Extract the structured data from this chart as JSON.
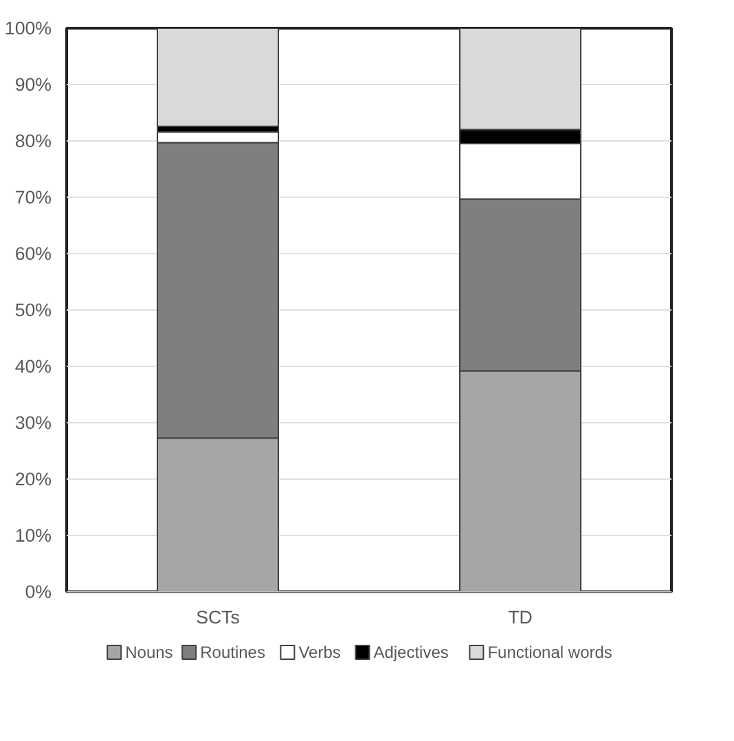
{
  "chart_data": {
    "type": "bar",
    "stacked": true,
    "categories": [
      "SCTs",
      "TD"
    ],
    "series": [
      {
        "name": "Nouns",
        "color": "#a6a6a6",
        "values": [
          27.3,
          39.2
        ]
      },
      {
        "name": "Routines",
        "color": "#7f7f7f",
        "values": [
          52.4,
          30.5
        ]
      },
      {
        "name": "Verbs",
        "color": "#ffffff",
        "values": [
          1.9,
          9.8
        ]
      },
      {
        "name": "Adjectives",
        "color": "#000000",
        "values": [
          1.0,
          2.5
        ]
      },
      {
        "name": "Functional words",
        "color": "#d9d9d9",
        "values": [
          17.4,
          18.0
        ]
      }
    ],
    "ylim": [
      0,
      100
    ],
    "yticks": [
      {
        "value": 0,
        "label": "0%"
      },
      {
        "value": 10,
        "label": "10%"
      },
      {
        "value": 20,
        "label": "20%"
      },
      {
        "value": 30,
        "label": "30%"
      },
      {
        "value": 40,
        "label": "40%"
      },
      {
        "value": 50,
        "label": "50%"
      },
      {
        "value": 60,
        "label": "60%"
      },
      {
        "value": 70,
        "label": "70%"
      },
      {
        "value": 80,
        "label": "80%"
      },
      {
        "value": 90,
        "label": "90%"
      },
      {
        "value": 100,
        "label": "100%"
      }
    ],
    "grid": "y",
    "legend": "bottom"
  }
}
